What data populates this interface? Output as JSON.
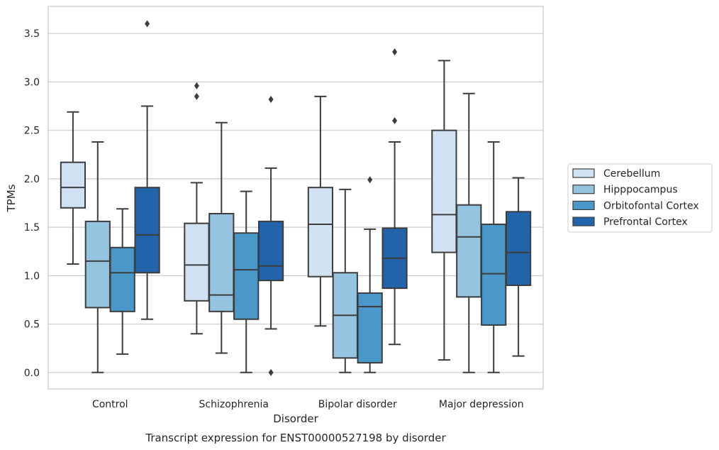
{
  "chart_data": {
    "type": "box",
    "xlabel": "Disorder",
    "ylabel": "TPMs",
    "caption": "Transcript expression for ENST00000527198 by disorder",
    "categories": [
      "Control",
      "Schizophrenia",
      "Bipolar disorder",
      "Major depression"
    ],
    "ylim": [
      -0.17,
      3.78
    ],
    "yticks": [
      "0.0",
      "0.5",
      "1.0",
      "1.5",
      "2.0",
      "2.5",
      "3.0",
      "3.5"
    ],
    "grid": true,
    "legend_position": "right",
    "series": [
      {
        "name": "Cerebellum",
        "color": "#d0e1f2",
        "boxes": [
          {
            "whisker_low": 1.12,
            "q1": 1.7,
            "median": 1.91,
            "q3": 2.17,
            "whisker_high": 2.69,
            "outliers": []
          },
          {
            "whisker_low": 0.4,
            "q1": 0.74,
            "median": 1.11,
            "q3": 1.54,
            "whisker_high": 1.96,
            "outliers": [
              2.85,
              2.96
            ]
          },
          {
            "whisker_low": 0.48,
            "q1": 0.99,
            "median": 1.53,
            "q3": 1.91,
            "whisker_high": 2.85,
            "outliers": []
          },
          {
            "whisker_low": 0.13,
            "q1": 1.24,
            "median": 1.63,
            "q3": 2.5,
            "whisker_high": 3.22,
            "outliers": []
          }
        ]
      },
      {
        "name": "Hipppocampus",
        "color": "#94c4df",
        "boxes": [
          {
            "whisker_low": 0.0,
            "q1": 0.67,
            "median": 1.15,
            "q3": 1.56,
            "whisker_high": 2.38,
            "outliers": []
          },
          {
            "whisker_low": 0.2,
            "q1": 0.63,
            "median": 0.8,
            "q3": 1.64,
            "whisker_high": 2.58,
            "outliers": []
          },
          {
            "whisker_low": 0.0,
            "q1": 0.15,
            "median": 0.59,
            "q3": 1.03,
            "whisker_high": 1.89,
            "outliers": []
          },
          {
            "whisker_low": 0.0,
            "q1": 0.78,
            "median": 1.4,
            "q3": 1.73,
            "whisker_high": 2.88,
            "outliers": []
          }
        ]
      },
      {
        "name": "Orbitofontal Cortex",
        "color": "#4a98c9",
        "boxes": [
          {
            "whisker_low": 0.19,
            "q1": 0.63,
            "median": 1.03,
            "q3": 1.29,
            "whisker_high": 1.69,
            "outliers": []
          },
          {
            "whisker_low": 0.0,
            "q1": 0.55,
            "median": 1.06,
            "q3": 1.44,
            "whisker_high": 1.87,
            "outliers": []
          },
          {
            "whisker_low": 0.0,
            "q1": 0.1,
            "median": 0.68,
            "q3": 0.82,
            "whisker_high": 1.48,
            "outliers": [
              1.99
            ]
          },
          {
            "whisker_low": 0.0,
            "q1": 0.49,
            "median": 1.02,
            "q3": 1.53,
            "whisker_high": 2.38,
            "outliers": []
          }
        ]
      },
      {
        "name": "Prefrontal Cortex",
        "color": "#2164ab",
        "boxes": [
          {
            "whisker_low": 0.55,
            "q1": 1.03,
            "median": 1.42,
            "q3": 1.91,
            "whisker_high": 2.75,
            "outliers": [
              3.6
            ]
          },
          {
            "whisker_low": 0.45,
            "q1": 0.95,
            "median": 1.1,
            "q3": 1.56,
            "whisker_high": 2.11,
            "outliers": [
              2.82,
              0.0
            ]
          },
          {
            "whisker_low": 0.29,
            "q1": 0.87,
            "median": 1.18,
            "q3": 1.49,
            "whisker_high": 2.38,
            "outliers": [
              2.6,
              3.31
            ]
          },
          {
            "whisker_low": 0.17,
            "q1": 0.9,
            "median": 1.24,
            "q3": 1.66,
            "whisker_high": 2.01,
            "outliers": []
          }
        ]
      }
    ]
  }
}
